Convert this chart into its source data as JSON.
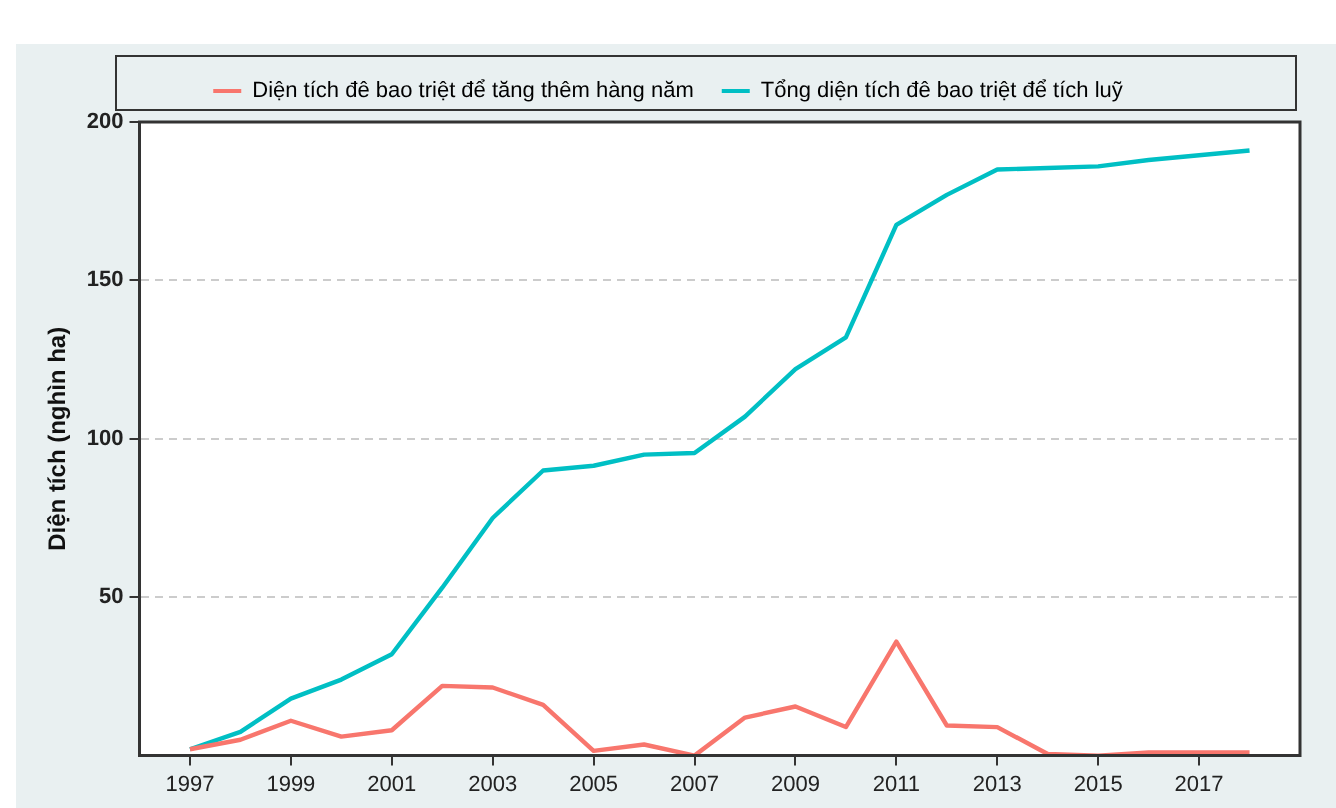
{
  "chart_data": {
    "type": "line",
    "ylabel": "Diện tích (nghìn ha)",
    "x": [
      1997,
      1998,
      1999,
      2000,
      2001,
      2002,
      2003,
      2004,
      2005,
      2006,
      2007,
      2008,
      2009,
      2010,
      2011,
      2012,
      2013,
      2014,
      2015,
      2016,
      2017,
      2018
    ],
    "series": [
      {
        "name": "Diện tích đê bao triệt để tăng thêm hàng năm",
        "color": "#f8766d",
        "values": [
          2,
          5,
          11,
          6,
          8,
          22,
          21.5,
          16,
          1.5,
          3.5,
          0,
          12,
          15.5,
          9,
          36,
          9.5,
          9,
          0.5,
          0,
          1,
          1,
          1
        ]
      },
      {
        "name": "Tổng diện tích đê bao triệt để tích luỹ",
        "color": "#00bfc4",
        "values": [
          2,
          7.5,
          18,
          24,
          32,
          53,
          75,
          90,
          91.5,
          95,
          95.5,
          107,
          122,
          132,
          167.5,
          177,
          185,
          185.5,
          186,
          188,
          189.5,
          191
        ]
      }
    ],
    "xlim": [
      1996,
      2019
    ],
    "xticks": [
      1997,
      1999,
      2001,
      2003,
      2005,
      2007,
      2009,
      2011,
      2013,
      2015,
      2017
    ],
    "ylim": [
      0,
      200
    ],
    "yticks": [
      50,
      100,
      150,
      200
    ],
    "grid": "y",
    "legend": "top",
    "marker": "none",
    "line_style": "solid"
  }
}
